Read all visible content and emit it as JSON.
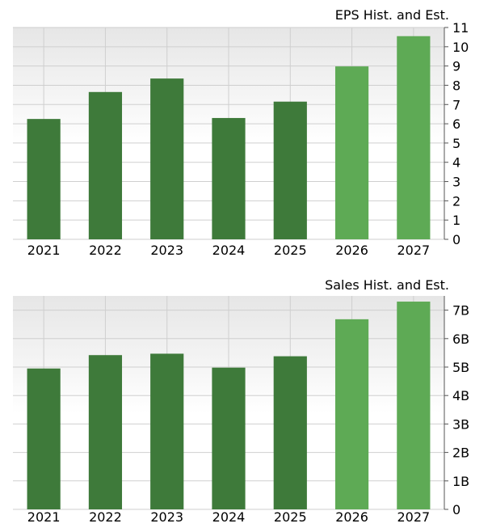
{
  "chart_data": [
    {
      "type": "bar",
      "title": "EPS Hist. and Est.",
      "categories": [
        "2021",
        "2022",
        "2023",
        "2024",
        "2025",
        "2026",
        "2027"
      ],
      "values": [
        6.25,
        7.65,
        8.35,
        6.3,
        7.15,
        8.98,
        10.55
      ],
      "estimate_flags": [
        false,
        false,
        false,
        false,
        false,
        true,
        true
      ],
      "yticks": [
        "0",
        "1",
        "2",
        "3",
        "4",
        "5",
        "6",
        "7",
        "8",
        "9",
        "10",
        "11"
      ],
      "ylim": [
        0,
        11
      ],
      "y_axis_side": "right",
      "grid": true,
      "colors": {
        "historical": "#3e7a3a",
        "estimate": "#5eaa55"
      }
    },
    {
      "type": "bar",
      "title": "Sales Hist. and Est.",
      "categories": [
        "2021",
        "2022",
        "2023",
        "2024",
        "2025",
        "2026",
        "2027"
      ],
      "values": [
        4.95,
        5.42,
        5.47,
        4.98,
        5.38,
        6.68,
        7.3
      ],
      "value_unit": "B",
      "estimate_flags": [
        false,
        false,
        false,
        false,
        false,
        true,
        true
      ],
      "yticks": [
        "0",
        "1B",
        "2B",
        "3B",
        "4B",
        "5B",
        "6B",
        "7B"
      ],
      "ylim": [
        0,
        7.5
      ],
      "y_axis_side": "right",
      "grid": true,
      "colors": {
        "historical": "#3e7a3a",
        "estimate": "#5eaa55"
      }
    }
  ]
}
